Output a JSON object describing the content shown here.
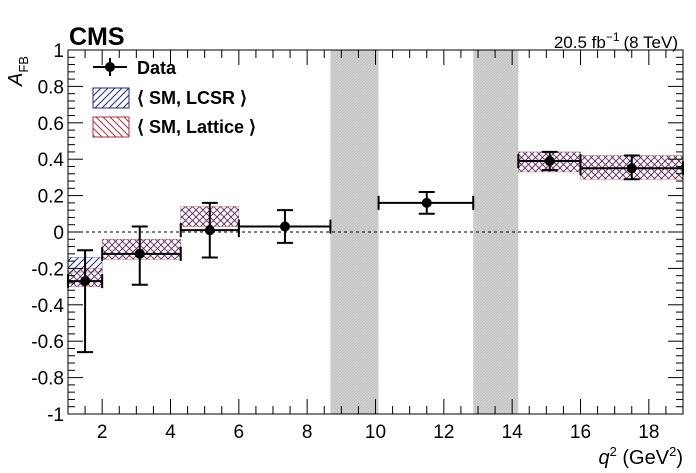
{
  "header": {
    "experiment": "CMS",
    "lumi_value": "20.5 fb",
    "lumi_exp": "−1",
    "lumi_energy": "(8 TeV)"
  },
  "chart_data": {
    "type": "scatter",
    "xlabel": {
      "base": "q",
      "sup": "2",
      "unit_open": " (GeV",
      "unit_sup": "2",
      "unit_close": ")"
    },
    "ylabel": {
      "base": "A",
      "sub": "FB"
    },
    "xlim": [
      1,
      19
    ],
    "ylim": [
      -1,
      1
    ],
    "x_ticks": [
      2,
      4,
      6,
      8,
      10,
      12,
      14,
      16,
      18
    ],
    "y_ticks": [
      -1,
      -0.8,
      -0.6,
      -0.4,
      -0.2,
      0,
      0.2,
      0.4,
      0.6,
      0.8,
      1
    ],
    "y_tick_labels": [
      "-1",
      "-0.8",
      "-0.6",
      "-0.4",
      "-0.2",
      "0",
      "0.2",
      "0.4",
      "0.6",
      "0.8",
      "1"
    ],
    "vetoed_regions": [
      [
        8.68,
        10.09
      ],
      [
        12.86,
        14.18
      ]
    ],
    "reference_line": 0,
    "legend": {
      "position": "top-left",
      "entries": [
        "Data",
        "⟨ SM, LCSR ⟩",
        "⟨ SM, Lattice ⟩"
      ]
    },
    "series": [
      {
        "name": "Data",
        "points": [
          {
            "x": 1.5,
            "xlo": 1.0,
            "xhi": 2.0,
            "y": -0.27,
            "ylo": -0.66,
            "yhi": -0.1
          },
          {
            "x": 3.1,
            "xlo": 2.0,
            "xhi": 4.3,
            "y": -0.12,
            "ylo": -0.29,
            "yhi": 0.03
          },
          {
            "x": 5.15,
            "xlo": 4.3,
            "xhi": 6.0,
            "y": 0.01,
            "ylo": -0.14,
            "yhi": 0.16
          },
          {
            "x": 7.35,
            "xlo": 6.0,
            "xhi": 8.68,
            "y": 0.03,
            "ylo": -0.06,
            "yhi": 0.12
          },
          {
            "x": 11.5,
            "xlo": 10.09,
            "xhi": 12.86,
            "y": 0.16,
            "ylo": 0.1,
            "yhi": 0.22
          },
          {
            "x": 15.1,
            "xlo": 14.18,
            "xhi": 16.0,
            "y": 0.39,
            "ylo": 0.34,
            "yhi": 0.44
          },
          {
            "x": 17.5,
            "xlo": 16.0,
            "xhi": 19.0,
            "y": 0.35,
            "ylo": 0.29,
            "yhi": 0.42
          }
        ]
      },
      {
        "name": "⟨ SM, LCSR ⟩",
        "color": "#1f2a80",
        "bands": [
          {
            "xlo": 1.0,
            "xhi": 2.0,
            "ylo": -0.22,
            "yhi": -0.14
          }
        ]
      },
      {
        "name": "⟨ SM, Lattice ⟩",
        "color": "#a8323c",
        "bands": [
          {
            "xlo": 1.0,
            "xhi": 2.0,
            "ylo": -0.3,
            "yhi": -0.2
          },
          {
            "xlo": 2.0,
            "xhi": 4.3,
            "ylo": -0.15,
            "yhi": -0.04
          },
          {
            "xlo": 4.3,
            "xhi": 6.0,
            "ylo": 0.03,
            "yhi": 0.14
          },
          {
            "xlo": 14.18,
            "xhi": 16.0,
            "ylo": 0.33,
            "yhi": 0.44
          },
          {
            "xlo": 16.0,
            "xhi": 19.0,
            "ylo": 0.29,
            "yhi": 0.42
          }
        ]
      }
    ]
  }
}
